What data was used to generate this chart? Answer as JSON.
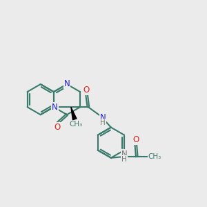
{
  "bg_color": "#ebebeb",
  "bond_color": "#3a7a6a",
  "n_color": "#2222cc",
  "o_color": "#dd2222",
  "h_color": "#777777",
  "black": "#000000",
  "line_width": 1.5,
  "figsize": [
    3.0,
    3.0
  ],
  "dpi": 100,
  "xlim": [
    0,
    10
  ],
  "ylim": [
    0,
    10
  ],
  "ring_r": 0.75,
  "font_size_atom": 8.5
}
